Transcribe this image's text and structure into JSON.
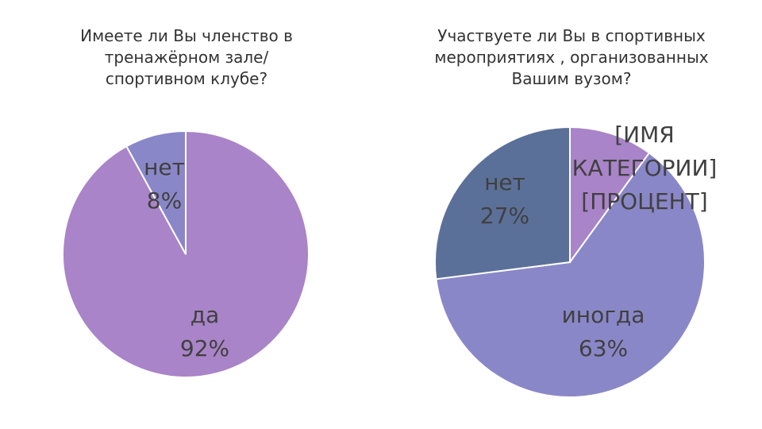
{
  "chart_data": [
    {
      "type": "pie",
      "title": "Имеете ли Вы членство в тренажёрном зале/спортивном клубе?",
      "categories": [
        "да",
        "нет"
      ],
      "values": [
        92,
        8
      ],
      "value_labels": [
        "92%",
        "8%"
      ],
      "colors": [
        "#a984c8",
        "#8a87c8"
      ]
    },
    {
      "type": "pie",
      "title": "Участвуете ли Вы в спортивных мероприятиях , организованных Вашим вузом?",
      "categories": [
        "[ИМЯ КАТЕГОРИИ]",
        "иногда",
        "нет"
      ],
      "values": [
        10,
        63,
        27
      ],
      "value_labels": [
        "[ПРОЦЕНТ]",
        "63%",
        "27%"
      ],
      "colors": [
        "#a984c8",
        "#8a87c8",
        "#5b7099"
      ]
    }
  ]
}
